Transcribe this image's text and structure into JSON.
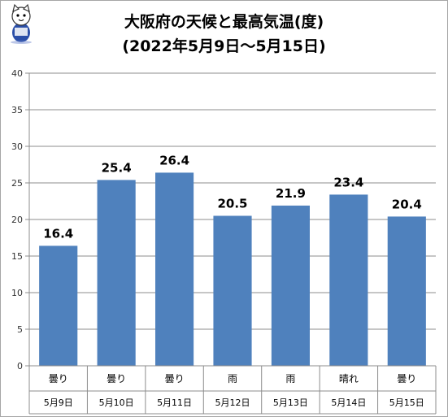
{
  "chart_data": {
    "type": "bar",
    "title": "大阪府の天候と最高気温(度)",
    "subtitle": "(2022年5月9日～5月15日)",
    "categories": [
      "5月9日",
      "5月10日",
      "5月11日",
      "5月12日",
      "5月13日",
      "5月14日",
      "5月15日"
    ],
    "weather": [
      "曇り",
      "曇り",
      "曇り",
      "雨",
      "雨",
      "晴れ",
      "曇り"
    ],
    "values": [
      16.4,
      25.4,
      26.4,
      20.5,
      21.9,
      23.4,
      20.4
    ],
    "value_labels": [
      "16.4",
      "25.4",
      "26.4",
      "20.5",
      "21.9",
      "23.4",
      "20.4"
    ],
    "yticks": [
      "0",
      "5",
      "10",
      "15",
      "20",
      "25",
      "30",
      "35",
      "40"
    ],
    "ylim": [
      0,
      40
    ],
    "grid": true,
    "bar_color": "#4f81bd"
  },
  "mascot_icon": "cat-mascot-icon"
}
